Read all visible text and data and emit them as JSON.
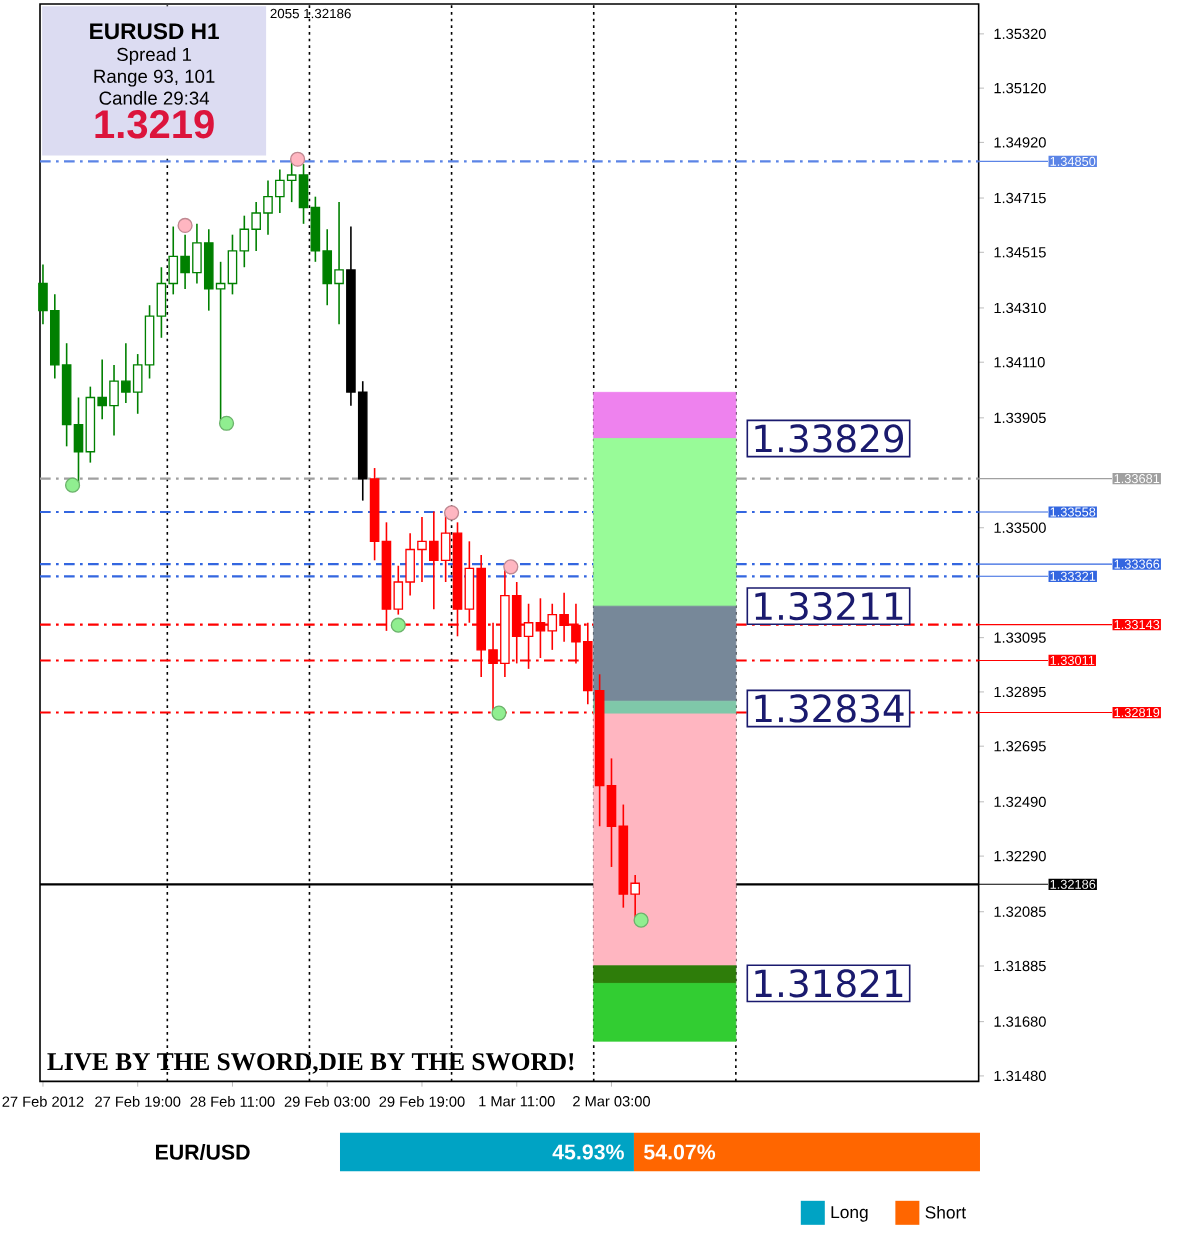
{
  "chart_data": [
    {
      "type": "candlestick",
      "xlim": [
        "2012-02-27T02:30",
        "2012-03-04T17:00"
      ],
      "ylim": [
        1.3146,
        1.3543
      ],
      "xticks": [
        {
          "value": "2012-02-27T03:00",
          "label": "27 Feb 2012"
        },
        {
          "value": "2012-02-27T19:00",
          "label": "27 Feb 19:00"
        },
        {
          "value": "2012-02-28T11:00",
          "label": "28 Feb 11:00"
        },
        {
          "value": "2012-02-29T03:00",
          "label": "29 Feb 03:00"
        },
        {
          "value": "2012-02-29T19:00",
          "label": "29 Feb 19:00"
        },
        {
          "value": "2012-03-01T11:00",
          "label": "1 Mar 11:00"
        },
        {
          "value": "2012-03-02T03:00",
          "label": "2 Mar 03:00"
        }
      ],
      "yticks": [
        {
          "value": 1.3532,
          "label": "1.35320"
        },
        {
          "value": 1.3512,
          "label": "1.35120"
        },
        {
          "value": 1.3492,
          "label": "1.34920"
        },
        {
          "value": 1.34715,
          "label": "1.34715"
        },
        {
          "value": 1.34515,
          "label": "1.34515"
        },
        {
          "value": 1.3431,
          "label": "1.34310"
        },
        {
          "value": 1.3411,
          "label": "1.34110"
        },
        {
          "value": 1.33905,
          "label": "1.33905"
        },
        {
          "value": 1.335,
          "label": "1.33500"
        },
        {
          "value": 1.33095,
          "label": "1.33095"
        },
        {
          "value": 1.32895,
          "label": "1.32895"
        },
        {
          "value": 1.32695,
          "label": "1.32695"
        },
        {
          "value": 1.3249,
          "label": "1.32490"
        },
        {
          "value": 1.3229,
          "label": "1.32290"
        },
        {
          "value": 1.32085,
          "label": "1.32085"
        },
        {
          "value": 1.31885,
          "label": "1.31885"
        },
        {
          "value": 1.3168,
          "label": "1.31680"
        },
        {
          "value": 1.3148,
          "label": "1.31480"
        }
      ],
      "series": [
        {
          "type": "bar",
          "color": "#ee82ee",
          "x": [
            "2012-03-02T12:00"
          ],
          "base": [
            1.33829
          ],
          "values": [
            0.0017
          ]
        },
        {
          "type": "bar",
          "color": "#98fb98",
          "x": [
            "2012-03-02T12:00"
          ],
          "base": [
            1.33211
          ],
          "values": [
            0.00618
          ]
        },
        {
          "type": "bar",
          "color": "#778899",
          "x": [
            "2012-03-02T12:00"
          ],
          "base": [
            1.32861
          ],
          "values": [
            0.0035
          ]
        },
        {
          "type": "bar",
          "color": "#7fc8a9",
          "x": [
            "2012-03-02T12:00"
          ],
          "base": [
            1.32814
          ],
          "values": [
            0.00047
          ]
        },
        {
          "type": "bar",
          "color": "#ffb6c1",
          "x": [
            "2012-03-02T12:00"
          ],
          "base": [
            1.31886
          ],
          "values": [
            0.00928
          ]
        },
        {
          "type": "bar",
          "color": "#2e7d0a",
          "x": [
            "2012-03-02T12:00"
          ],
          "base": [
            1.31821
          ],
          "values": [
            0.00065
          ]
        },
        {
          "type": "bar",
          "color": "#32cd32",
          "x": [
            "2012-03-02T12:00"
          ],
          "base": [
            1.31608
          ],
          "values": [
            0.00213
          ]
        },
        {
          "color": "#008000",
          "x": [
            "2012-02-27T03:00",
            "2012-02-27T05:00",
            "2012-02-27T07:00",
            "2012-02-27T09:00",
            "2012-02-27T11:00",
            "2012-02-27T13:00",
            "2012-02-27T15:00",
            "2012-02-27T17:00",
            "2012-02-27T19:00",
            "2012-02-27T21:00",
            "2012-02-27T23:00",
            "2012-02-28T01:00",
            "2012-02-28T03:00",
            "2012-02-28T05:00",
            "2012-02-28T07:00",
            "2012-02-28T09:00",
            "2012-02-28T11:00",
            "2012-02-28T13:00",
            "2012-02-28T15:00",
            "2012-02-28T17:00",
            "2012-02-28T19:00",
            "2012-02-28T21:00",
            "2012-02-28T23:00",
            "2012-02-29T01:00",
            "2012-02-29T03:00",
            "2012-02-29T05:00"
          ],
          "ohlc": [
            [
              1.344,
              1.3447,
              1.3425,
              1.343
            ],
            [
              1.343,
              1.3436,
              1.3405,
              1.341
            ],
            [
              1.341,
              1.3418,
              1.338,
              1.3388
            ],
            [
              1.3388,
              1.3398,
              1.3366,
              1.3378
            ],
            [
              1.3378,
              1.3402,
              1.3374,
              1.3398
            ],
            [
              1.3398,
              1.3412,
              1.339,
              1.3395
            ],
            [
              1.3395,
              1.341,
              1.3384,
              1.3404
            ],
            [
              1.3404,
              1.3418,
              1.3396,
              1.34
            ],
            [
              1.34,
              1.3414,
              1.3392,
              1.341
            ],
            [
              1.341,
              1.3432,
              1.3405,
              1.3428
            ],
            [
              1.3428,
              1.3446,
              1.342,
              1.344
            ],
            [
              1.344,
              1.3461,
              1.3436,
              1.345
            ],
            [
              1.345,
              1.3458,
              1.3438,
              1.3444
            ],
            [
              1.3444,
              1.3462,
              1.344,
              1.3455
            ],
            [
              1.3455,
              1.346,
              1.343,
              1.3438
            ],
            [
              1.3438,
              1.3448,
              1.3389,
              1.344
            ],
            [
              1.344,
              1.3458,
              1.3436,
              1.3452
            ],
            [
              1.3452,
              1.3465,
              1.3446,
              1.346
            ],
            [
              1.346,
              1.347,
              1.3452,
              1.3466
            ],
            [
              1.3466,
              1.3478,
              1.3458,
              1.3472
            ],
            [
              1.3472,
              1.3482,
              1.3466,
              1.3478
            ],
            [
              1.3478,
              1.3486,
              1.347,
              1.348
            ],
            [
              1.348,
              1.3484,
              1.3462,
              1.3468
            ],
            [
              1.3468,
              1.3472,
              1.3448,
              1.3452
            ],
            [
              1.3452,
              1.346,
              1.3432,
              1.344
            ],
            [
              1.344,
              1.347,
              1.3425,
              1.3445
            ]
          ]
        },
        {
          "color": "#000000",
          "x": [
            "2012-02-29T07:00",
            "2012-02-29T09:00"
          ],
          "ohlc": [
            [
              1.3445,
              1.3461,
              1.3395,
              1.34
            ],
            [
              1.34,
              1.3404,
              1.336,
              1.3368
            ]
          ]
        },
        {
          "color": "#ff0000",
          "x": [
            "2012-02-29T11:00",
            "2012-02-29T13:00",
            "2012-02-29T15:00",
            "2012-02-29T17:00",
            "2012-02-29T19:00",
            "2012-02-29T21:00",
            "2012-02-29T23:00",
            "2012-03-01T01:00",
            "2012-03-01T03:00",
            "2012-03-01T05:00",
            "2012-03-01T07:00",
            "2012-03-01T09:00",
            "2012-03-01T11:00",
            "2012-03-01T13:00",
            "2012-03-01T15:00",
            "2012-03-01T17:00",
            "2012-03-01T19:00",
            "2012-03-01T21:00",
            "2012-03-01T23:00",
            "2012-03-02T01:00",
            "2012-03-02T03:00",
            "2012-03-02T05:00",
            "2012-03-02T07:00"
          ],
          "ohlc": [
            [
              1.3368,
              1.3372,
              1.3338,
              1.3345
            ],
            [
              1.3345,
              1.3352,
              1.3312,
              1.332
            ],
            [
              1.332,
              1.3336,
              1.3318,
              1.333
            ],
            [
              1.333,
              1.3348,
              1.3325,
              1.3342
            ],
            [
              1.3342,
              1.3354,
              1.333,
              1.3345
            ],
            [
              1.3345,
              1.3356,
              1.332,
              1.3338
            ],
            [
              1.3338,
              1.3356,
              1.333,
              1.3348
            ],
            [
              1.3348,
              1.3352,
              1.331,
              1.332
            ],
            [
              1.332,
              1.3345,
              1.3315,
              1.3335
            ],
            [
              1.3335,
              1.334,
              1.3295,
              1.3305
            ],
            [
              1.3305,
              1.3315,
              1.3282,
              1.33
            ],
            [
              1.33,
              1.3336,
              1.3295,
              1.3325
            ],
            [
              1.3325,
              1.333,
              1.33,
              1.331
            ],
            [
              1.331,
              1.3322,
              1.3298,
              1.3315
            ],
            [
              1.3315,
              1.3324,
              1.3302,
              1.3312
            ],
            [
              1.3312,
              1.3322,
              1.3305,
              1.3318
            ],
            [
              1.3318,
              1.3326,
              1.3308,
              1.3314
            ],
            [
              1.3314,
              1.3322,
              1.33,
              1.3308
            ],
            [
              1.3308,
              1.3315,
              1.3285,
              1.329
            ],
            [
              1.329,
              1.3296,
              1.324,
              1.3255
            ],
            [
              1.3255,
              1.3265,
              1.3225,
              1.324
            ],
            [
              1.324,
              1.3248,
              1.321,
              1.3215
            ],
            [
              1.3215,
              1.3222,
              1.3205,
              1.3219
            ]
          ]
        },
        {
          "type": "scatter",
          "marker": "circle",
          "color": "#ffb6c1",
          "x": [
            "2012-02-28T03:00",
            "2012-02-28T22:00",
            "2012-03-01T00:00",
            "2012-03-01T10:00"
          ],
          "values": [
            1.34614,
            1.34858,
            1.33555,
            1.33356
          ]
        },
        {
          "type": "scatter",
          "marker": "circle",
          "color": "#90ee90",
          "x": [
            "2012-02-27T08:00",
            "2012-02-28T10:00",
            "2012-02-29T15:00",
            "2012-03-01T08:00",
            "2012-03-02T08:00"
          ],
          "values": [
            1.33657,
            1.33885,
            1.33141,
            1.32817,
            1.32054
          ]
        }
      ],
      "ref_lines": [
        {
          "axis": "x",
          "value": "2012-02-28T00:00",
          "line_style": "dotted",
          "color": "#000000"
        },
        {
          "axis": "x",
          "value": "2012-02-29T00:00",
          "line_style": "dotted",
          "color": "#000000"
        },
        {
          "axis": "x",
          "value": "2012-03-01T00:00",
          "line_style": "dotted",
          "color": "#000000"
        },
        {
          "axis": "x",
          "value": "2012-03-02T00:00",
          "line_style": "dotted",
          "color": "#000000"
        },
        {
          "axis": "x",
          "value": "2012-03-03T00:00",
          "line_style": "dotted",
          "color": "#000000"
        },
        {
          "axis": "y",
          "value": 1.3485,
          "label": "1.34850",
          "line_style": "dashed",
          "color": "#5b84e6"
        },
        {
          "axis": "y",
          "value": 1.33681,
          "label": "1.33681",
          "line_style": "dashed",
          "color": "#a0a0a0"
        },
        {
          "axis": "y",
          "value": 1.33558,
          "label": "1.33558",
          "line_style": "dashed",
          "color": "#3366e0"
        },
        {
          "axis": "y",
          "value": 1.33366,
          "label": "1.33366",
          "line_style": "dashed",
          "color": "#3366e0"
        },
        {
          "axis": "y",
          "value": 1.33321,
          "label": "1.33321",
          "line_style": "dashed",
          "color": "#3366e0"
        },
        {
          "axis": "y",
          "value": 1.33143,
          "label": "1.33143",
          "line_style": "dashed",
          "color": "#ff0000"
        },
        {
          "axis": "y",
          "value": 1.33011,
          "label": "1.33011",
          "line_style": "dashed",
          "color": "#ff0000"
        },
        {
          "axis": "y",
          "value": 1.32819,
          "label": "1.32819",
          "line_style": "dashed",
          "color": "#ff0000"
        },
        {
          "axis": "y",
          "value": 1.32186,
          "label": "1.32186",
          "line_style": "solid",
          "color": "#000000"
        }
      ],
      "annotations": [
        "EURUSD   H1",
        "Spread  1",
        "Range  93, 101",
        "Candle  29:34",
        "1.3219",
        "2055 1.32186",
        "LIVE BY THE SWORD,DIE BY THE SWORD!",
        {
          "text": "1.33829",
          "x": "2012-03-03T00:00",
          "y": 1.33829
        },
        {
          "text": "1.33211",
          "x": "2012-03-03T00:00",
          "y": 1.33211
        },
        {
          "text": "1.32834",
          "x": "2012-03-03T00:00",
          "y": 1.32834
        },
        {
          "text": "1.31821",
          "x": "2012-03-03T00:00",
          "y": 1.31821
        }
      ]
    },
    {
      "type": "bar",
      "orientation": "horizontal",
      "stacked": true,
      "categories": [
        "EUR/USD"
      ],
      "xlim": [
        0,
        100
      ],
      "tick_labels": "y",
      "legend": "bottom right",
      "series": [
        {
          "name": "Long",
          "color": "#00a3c4",
          "values": [
            45.93
          ],
          "value_labels": [
            "45.93%"
          ]
        },
        {
          "name": "Short",
          "color": "#ff6600",
          "values": [
            54.07
          ],
          "value_labels": [
            "54.07%"
          ]
        }
      ]
    }
  ]
}
